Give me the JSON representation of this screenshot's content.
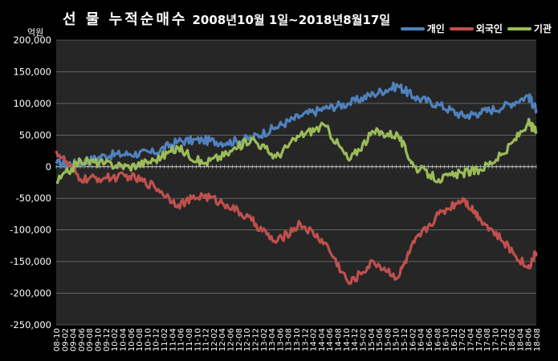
{
  "title": {
    "main": "선 물 누적순매수",
    "sub": "2008년10월 1일~2018년8월17일"
  },
  "chart_data": {
    "type": "line",
    "unit_label": "억원",
    "ylim": [
      -250000,
      200000
    ],
    "y_ticks": [
      "200,000",
      "150,000",
      "100,000",
      "50,000",
      "0",
      "-50,000",
      "-100,000",
      "-150,000",
      "-200,000",
      "-250,000"
    ],
    "y_tick_values": [
      200000,
      150000,
      100000,
      50000,
      0,
      -50000,
      -100000,
      -150000,
      -200000,
      -250000
    ],
    "x_ticks": [
      "08-10",
      "09-02",
      "09-04",
      "09-06",
      "09-08",
      "09-10",
      "09-12",
      "10-02",
      "10-04",
      "10-06",
      "10-08",
      "10-10",
      "10-12",
      "11-02",
      "11-04",
      "11-06",
      "11-08",
      "11-10",
      "11-12",
      "12-02",
      "12-04",
      "12-06",
      "12-08",
      "12-10",
      "12-12",
      "13-02",
      "13-04",
      "13-06",
      "13-08",
      "13-10",
      "13-12",
      "14-02",
      "14-04",
      "14-06",
      "14-08",
      "14-10",
      "14-12",
      "15-02",
      "15-04",
      "15-06",
      "15-08",
      "15-10",
      "15-12",
      "16-02",
      "16-04",
      "16-06",
      "16-08",
      "16-10",
      "16-12",
      "17-02",
      "17-04",
      "17-06",
      "17-08",
      "17-10",
      "17-12",
      "18-02",
      "18-04",
      "18-06",
      "18-08"
    ],
    "grid": true,
    "legend_position": "top-right",
    "x_index_range": [
      0,
      59
    ],
    "series": [
      {
        "name": "개인",
        "color": "#4f81bd",
        "x": [
          0,
          3,
          6,
          9,
          12,
          15,
          18,
          21,
          24,
          27,
          30,
          33,
          36,
          39,
          42,
          44,
          47,
          50,
          52,
          55,
          58,
          59
        ],
        "values": [
          5000,
          5000,
          18000,
          20000,
          22000,
          40000,
          42000,
          38000,
          45000,
          62000,
          80000,
          92000,
          100000,
          115000,
          128000,
          110000,
          98000,
          80000,
          85000,
          95000,
          112000,
          90000
        ]
      },
      {
        "name": "외국인",
        "color": "#c0504d",
        "x": [
          0,
          3,
          6,
          9,
          12,
          15,
          18,
          21,
          24,
          27,
          30,
          33,
          36,
          39,
          42,
          44,
          47,
          50,
          52,
          55,
          58,
          59
        ],
        "values": [
          25000,
          -20000,
          -18000,
          -15000,
          -30000,
          -60000,
          -45000,
          -60000,
          -85000,
          -120000,
          -90000,
          -120000,
          -185000,
          -150000,
          -175000,
          -120000,
          -75000,
          -50000,
          -80000,
          -120000,
          -160000,
          -135000
        ]
      },
      {
        "name": "기관",
        "color": "#9bbb59",
        "x": [
          0,
          3,
          6,
          9,
          12,
          15,
          18,
          21,
          24,
          27,
          30,
          33,
          36,
          39,
          42,
          44,
          47,
          50,
          52,
          55,
          58,
          59
        ],
        "values": [
          -25000,
          10000,
          5000,
          0,
          10000,
          30000,
          5000,
          20000,
          45000,
          15000,
          50000,
          65000,
          10000,
          55000,
          50000,
          0,
          -20000,
          -10000,
          -5000,
          20000,
          70000,
          55000
        ]
      }
    ]
  }
}
